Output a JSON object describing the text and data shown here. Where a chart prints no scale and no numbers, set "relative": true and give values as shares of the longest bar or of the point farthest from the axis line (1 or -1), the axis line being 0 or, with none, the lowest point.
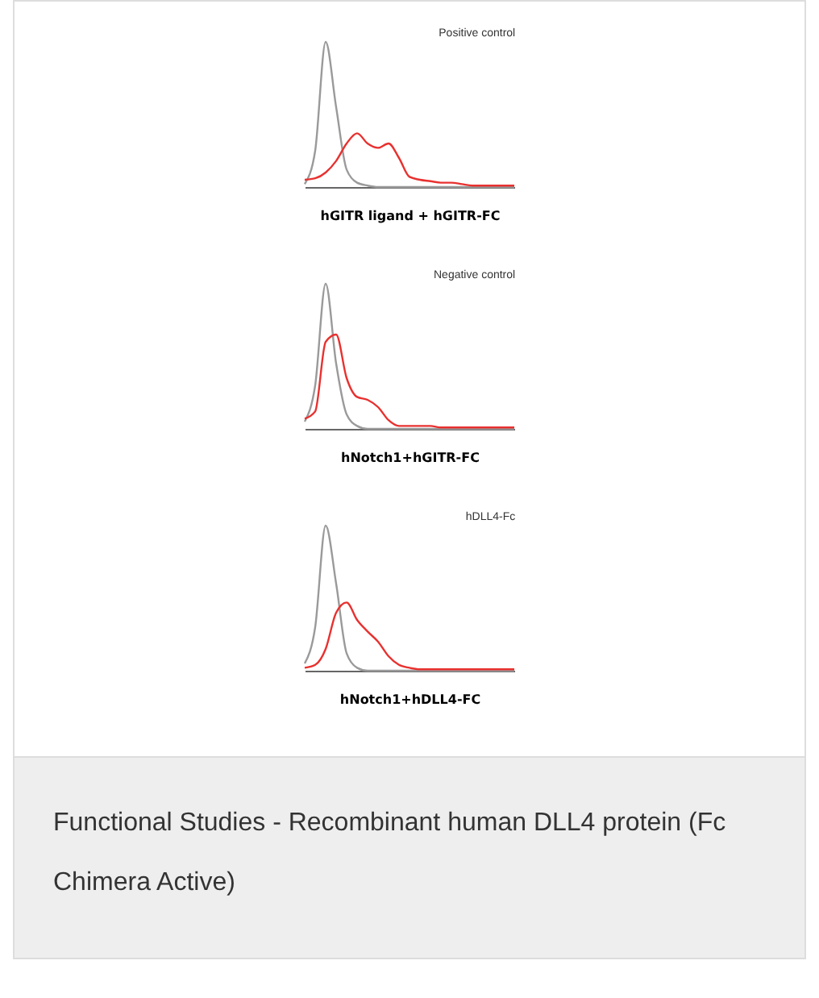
{
  "chart_data": [
    {
      "type": "line",
      "title": "Positive control",
      "xlabel": "hGITR ligand + hGITR-FC",
      "relative": true,
      "legend": false,
      "categories": [
        null,
        null,
        null,
        null,
        null,
        null,
        null,
        null,
        null,
        null,
        null,
        null,
        null,
        null,
        null,
        null,
        null,
        null,
        null,
        null,
        null
      ],
      "series": [
        {
          "color": "#9a9a9a",
          "values": [
            0.02,
            0.25,
            1.0,
            0.55,
            0.12,
            0.03,
            0.01,
            0,
            0,
            0,
            0,
            0,
            0,
            0,
            0,
            0,
            0,
            0,
            0,
            0,
            0
          ]
        },
        {
          "color": "#e8312f",
          "values": [
            0.05,
            0.06,
            0.1,
            0.18,
            0.3,
            0.37,
            0.3,
            0.27,
            0.3,
            0.2,
            0.07,
            0.05,
            0.04,
            0.03,
            0.03,
            0.02,
            0.01,
            0.01,
            0.01,
            0.01,
            0.01
          ]
        }
      ]
    },
    {
      "type": "line",
      "title": "Negative control",
      "xlabel": "hNotch1+hGITR-FC",
      "relative": true,
      "legend": false,
      "categories": [
        null,
        null,
        null,
        null,
        null,
        null,
        null,
        null,
        null,
        null,
        null,
        null,
        null,
        null,
        null,
        null,
        null,
        null,
        null,
        null,
        null
      ],
      "series": [
        {
          "color": "#9a9a9a",
          "values": [
            0.05,
            0.3,
            1.0,
            0.45,
            0.1,
            0.02,
            0,
            0,
            0,
            0,
            0,
            0,
            0,
            0,
            0,
            0,
            0,
            0,
            0,
            0,
            0
          ]
        },
        {
          "color": "#e8312f",
          "values": [
            0.07,
            0.12,
            0.6,
            0.65,
            0.35,
            0.22,
            0.2,
            0.15,
            0.06,
            0.02,
            0.02,
            0.02,
            0.02,
            0.01,
            0.01,
            0.01,
            0.01,
            0.01,
            0.01,
            0.01,
            0.01
          ]
        }
      ]
    },
    {
      "type": "line",
      "title": "hDLL4-Fc",
      "xlabel": "hNotch1+hDLL4-FC",
      "relative": true,
      "legend": false,
      "categories": [
        null,
        null,
        null,
        null,
        null,
        null,
        null,
        null,
        null,
        null,
        null,
        null,
        null,
        null,
        null,
        null,
        null,
        null,
        null,
        null,
        null
      ],
      "series": [
        {
          "color": "#9a9a9a",
          "values": [
            0.05,
            0.3,
            1.0,
            0.6,
            0.12,
            0.02,
            0,
            0,
            0,
            0,
            0,
            0,
            0,
            0,
            0,
            0,
            0,
            0,
            0,
            0,
            0
          ]
        },
        {
          "color": "#e8312f",
          "values": [
            0.02,
            0.04,
            0.15,
            0.4,
            0.47,
            0.35,
            0.27,
            0.2,
            0.1,
            0.04,
            0.02,
            0.01,
            0.01,
            0.01,
            0.01,
            0.01,
            0.01,
            0.01,
            0.01,
            0.01,
            0.01
          ]
        }
      ],
      "annotations": [
        "Functional Studies - Recombinant human DLL4 protein (Fc Chimera Active)"
      ]
    }
  ]
}
